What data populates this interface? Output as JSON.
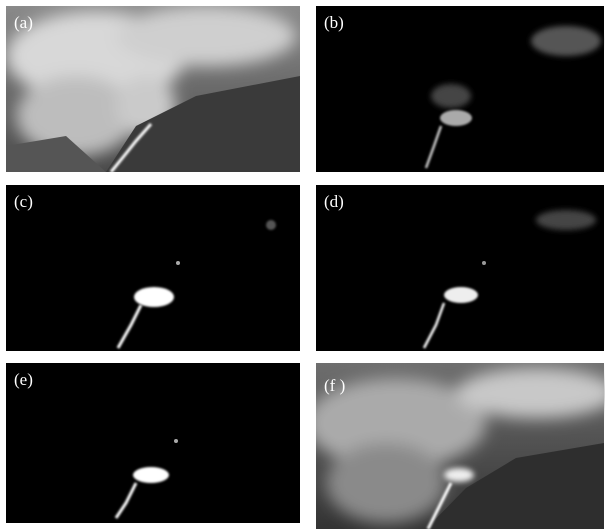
{
  "panels": [
    {
      "label": "(a)"
    },
    {
      "label": "(b)"
    },
    {
      "label": "(c)"
    },
    {
      "label": "(d)"
    },
    {
      "label": "(e)"
    },
    {
      "label": "(f )"
    }
  ]
}
